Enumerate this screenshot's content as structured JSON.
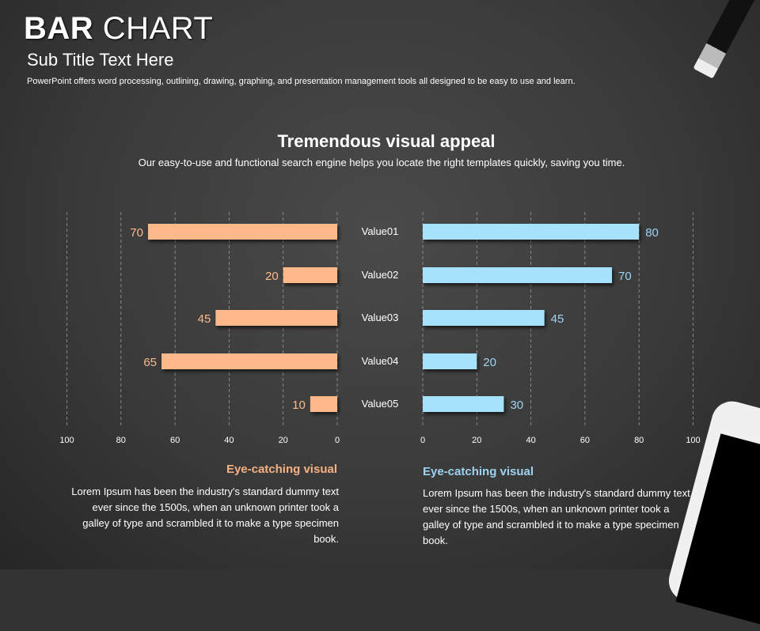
{
  "header": {
    "title_bold": "BAR",
    "title_rest": "CHART",
    "subtitle": "Sub Title Text Here",
    "description": "PowerPoint offers word processing, outlining, drawing, graphing, and presentation management tools all designed to be easy to use and learn."
  },
  "section": {
    "heading": "Tremendous visual appeal",
    "text": "Our easy-to-use and functional search engine helps you locate the right templates quickly, saving you time."
  },
  "chart_data": {
    "type": "bar",
    "orientation": "horizontal-butterfly",
    "categories": [
      "Value01",
      "Value02",
      "Value03",
      "Value04",
      "Value05"
    ],
    "series": [
      {
        "name": "left",
        "color": "#FDB98A",
        "values": [
          70,
          20,
          45,
          65,
          10
        ]
      },
      {
        "name": "right",
        "color": "#A6E2FB",
        "values": [
          80,
          70,
          45,
          20,
          30
        ]
      }
    ],
    "xlim": [
      0,
      100
    ],
    "ticks": [
      0,
      20,
      40,
      60,
      80,
      100
    ],
    "grid": true
  },
  "captions": {
    "left": {
      "title": "Eye-catching visual",
      "text": "Lorem Ipsum has been the industry's standard dummy text ever since the 1500s, when an unknown printer took a galley of type and scrambled it to make a type specimen book."
    },
    "right": {
      "title": "Eye-catching visual",
      "text": "Lorem Ipsum has been the industry's standard dummy text ever since the 1500s, when an unknown printer took a galley of type and scrambled it to make a type specimen book."
    }
  }
}
